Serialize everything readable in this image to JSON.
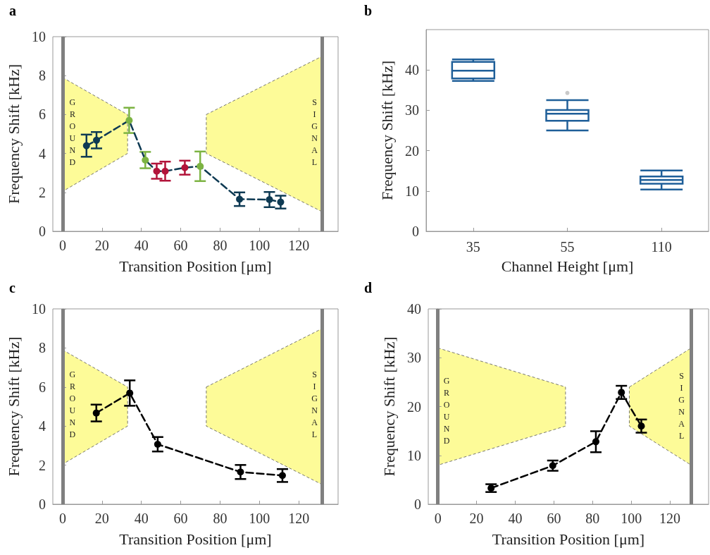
{
  "chart_data": [
    {
      "type": "line",
      "title": "a",
      "xlabel": "Transition Position [μm]",
      "ylabel": "Frequency Shift [kHz]",
      "annotations": [
        "GROUND",
        "SIGNAL"
      ],
      "xlim": [
        -5,
        140
      ],
      "xticks": [
        0,
        20,
        40,
        60,
        80,
        100,
        120
      ],
      "ylim": [
        0,
        10
      ],
      "yticks": [
        0,
        2,
        4,
        6,
        8,
        10
      ],
      "marker": "circle",
      "line_style": "dashed",
      "ref_lines": [
        {
          "axis": "x",
          "value": 0,
          "color": "#808080"
        },
        {
          "axis": "x",
          "value": 132,
          "color": "#808080"
        }
      ],
      "series": [
        {
          "color": "#0e3a53",
          "x": [
            12.1,
            17.2,
            33.8,
            42,
            47.8,
            52.1,
            62.1,
            69.9,
            89.9,
            105.1,
            110.8
          ],
          "values": [
            4.4,
            4.68,
            5.7,
            3.66,
            3.09,
            3.09,
            3.27,
            3.34,
            1.65,
            1.63,
            1.5
          ],
          "errors": [
            0.57,
            0.42,
            0.65,
            0.42,
            0.39,
            0.49,
            0.36,
            0.76,
            0.35,
            0.39,
            0.33
          ],
          "colors": [
            "#0e3a53",
            "#0e3a53",
            "#7cb342",
            "#7cb342",
            "#b2143a",
            "#b2143a",
            "#b2143a",
            "#7cb342",
            "#0e3a53",
            "#0e3a53",
            "#0e3a53"
          ]
        }
      ]
    },
    {
      "type": "box",
      "title": "b",
      "xlabel": "Channel Height [μm]",
      "ylabel": "Frequency Shift [kHz]",
      "categories": [
        "35",
        "55",
        "110"
      ],
      "ylim": [
        0,
        50
      ],
      "yticks": [
        0,
        10,
        20,
        30,
        40
      ],
      "series": [
        {
          "color": "#1f5f99",
          "boxes": [
            {
              "low": 37.3,
              "q1": 37.9,
              "median": 39.8,
              "q3": 42.0,
              "high": 42.6
            },
            {
              "low": 25.0,
              "q1": 27.4,
              "median": 29.15,
              "q3": 30.05,
              "high": 32.5,
              "outliers": [
                34.3
              ]
            },
            {
              "low": 10.35,
              "q1": 11.8,
              "median": 12.7,
              "q3": 13.6,
              "high": 15.1
            }
          ]
        }
      ]
    },
    {
      "type": "line",
      "title": "c",
      "xlabel": "Transition Position [μm]",
      "ylabel": "Frequency Shift [kHz]",
      "annotations": [
        "GROUND",
        "SIGNAL"
      ],
      "xlim": [
        -5,
        140
      ],
      "xticks": [
        0,
        20,
        40,
        60,
        80,
        100,
        120
      ],
      "ylim": [
        0,
        10
      ],
      "yticks": [
        0,
        2,
        4,
        6,
        8,
        10
      ],
      "marker": "circle",
      "line_style": "dashed",
      "ref_lines": [
        {
          "axis": "x",
          "value": 0,
          "color": "#808080"
        },
        {
          "axis": "x",
          "value": 132,
          "color": "#808080"
        }
      ],
      "series": [
        {
          "color": "#000000",
          "x": [
            17.1,
            34.1,
            48.3,
            90.4,
            111.7
          ],
          "values": [
            4.67,
            5.69,
            3.07,
            1.65,
            1.47
          ],
          "errors": [
            0.43,
            0.65,
            0.37,
            0.36,
            0.33
          ]
        }
      ]
    },
    {
      "type": "line",
      "title": "d",
      "xlabel": "Transition Position [μm]",
      "ylabel": "Frequency Shift [kHz]",
      "annotations": [
        "GROUND",
        "SIGNAL"
      ],
      "xlim": [
        -5,
        140
      ],
      "xticks": [
        0,
        20,
        40,
        60,
        80,
        100,
        120
      ],
      "ylim": [
        0,
        40
      ],
      "yticks": [
        0,
        10,
        20,
        30,
        40
      ],
      "marker": "circle",
      "line_style": "dashed",
      "ref_lines": [
        {
          "axis": "x",
          "value": 0,
          "color": "#808080"
        },
        {
          "axis": "x",
          "value": 131,
          "color": "#808080"
        }
      ],
      "series": [
        {
          "color": "#000000",
          "x": [
            27.5,
            59.4,
            81.7,
            94.9,
            105.2
          ],
          "values": [
            3.3,
            7.9,
            12.8,
            22.9,
            16.0
          ],
          "errors": [
            0.8,
            1.05,
            2.15,
            1.35,
            1.35
          ]
        }
      ]
    }
  ]
}
